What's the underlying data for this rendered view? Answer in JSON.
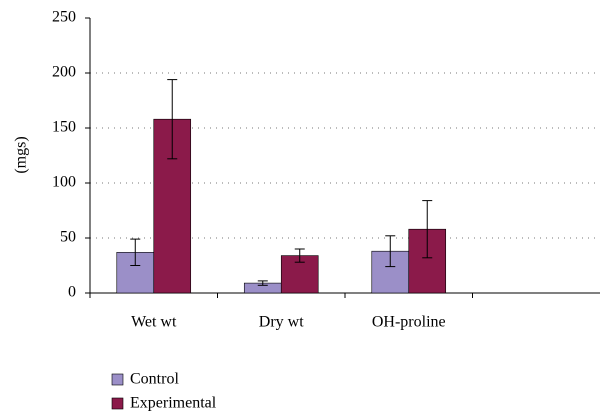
{
  "chart_data": {
    "type": "bar",
    "y_label": "(mgs)",
    "categories": [
      "Wet wt",
      "Dry wt",
      "OH-proline",
      null
    ],
    "series": [
      {
        "name": "Control",
        "color": "#9b8fc8",
        "values": [
          37,
          9,
          38,
          null
        ],
        "errors": [
          12,
          2,
          14,
          null
        ]
      },
      {
        "name": "Experimental",
        "color": "#8b1a4a",
        "values": [
          158,
          34,
          58,
          null
        ],
        "errors": [
          36,
          6,
          26,
          null
        ]
      }
    ],
    "ylim": [
      0,
      250
    ],
    "yticks": [
      0,
      50,
      100,
      150,
      200,
      250
    ],
    "grid": true,
    "legend": "bottom-left"
  }
}
